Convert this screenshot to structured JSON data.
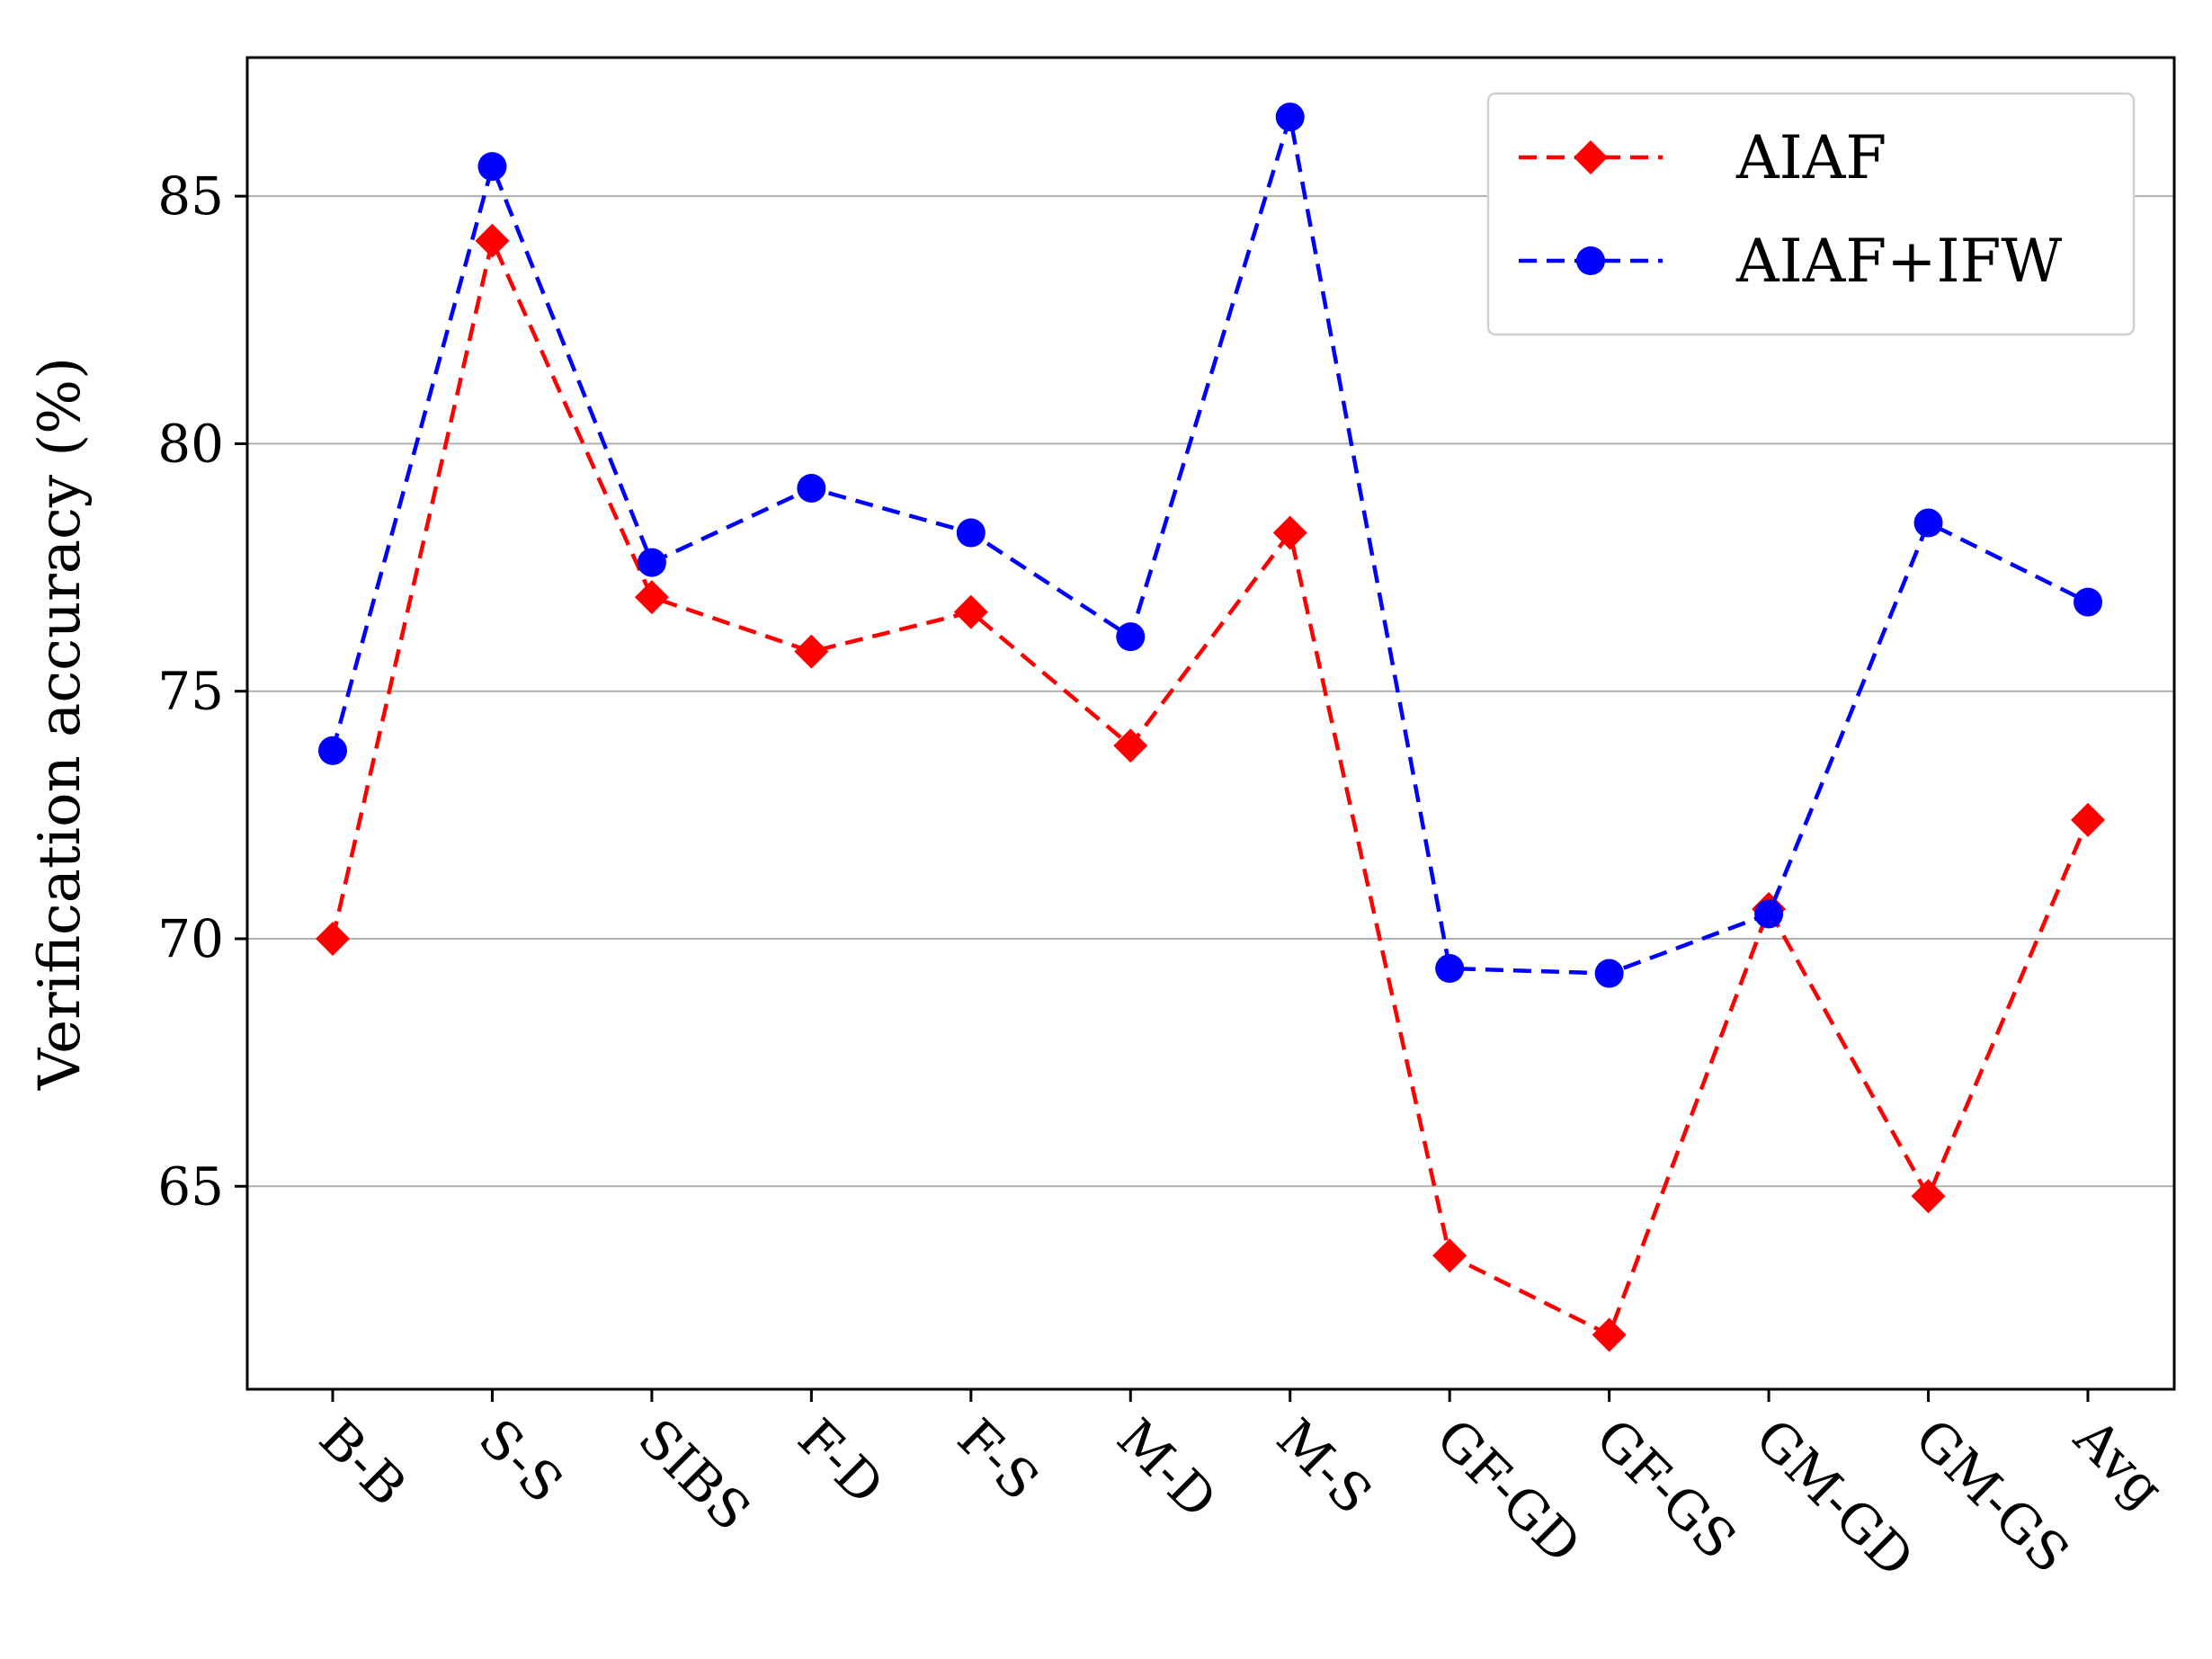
{
  "chart_data": {
    "type": "line",
    "title": "",
    "xlabel": "",
    "ylabel": "Verification accuracy (%)",
    "categories": [
      "B-B",
      "S-S",
      "SIBS",
      "F-D",
      "F-S",
      "M-D",
      "M-S",
      "GF-GD",
      "GF-GS",
      "GM-GD",
      "GM-GS",
      "Avg"
    ],
    "yticks": [
      65,
      70,
      75,
      80,
      85
    ],
    "ylim": [
      60.9,
      87.8
    ],
    "grid": "horizontal",
    "legend_position": "top-right",
    "series": [
      {
        "name": "AIAF",
        "color": "#ff0000",
        "marker": "diamond",
        "line_style": "dashed",
        "values": [
          70.0,
          84.1,
          76.9,
          75.8,
          76.6,
          73.9,
          78.2,
          63.6,
          62.0,
          70.6,
          64.8,
          72.4
        ]
      },
      {
        "name": "AIAF+IFW",
        "color": "#0000ff",
        "marker": "circle",
        "line_style": "dashed",
        "values": [
          73.8,
          85.6,
          77.6,
          79.1,
          78.2,
          76.1,
          86.6,
          69.4,
          69.3,
          70.5,
          78.4,
          76.8
        ]
      }
    ]
  }
}
